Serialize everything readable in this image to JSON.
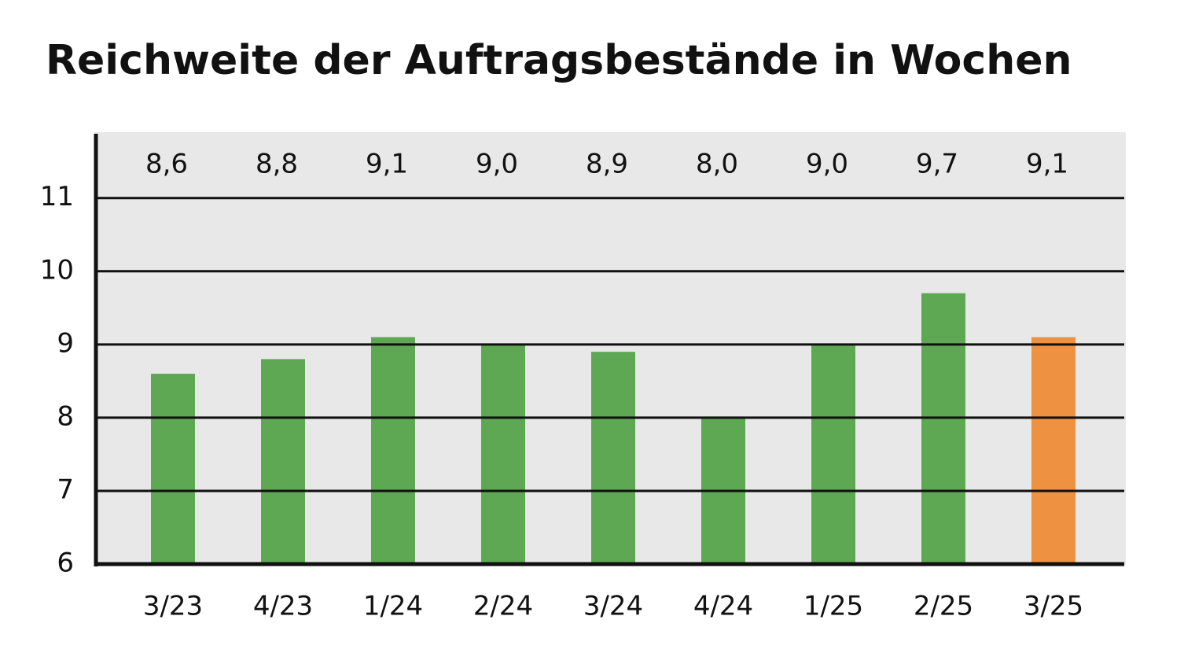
{
  "chart_data": {
    "type": "bar",
    "title": "Reichweite der Auftragsbestände in Wochen",
    "categories": [
      "3/23",
      "4/23",
      "1/24",
      "2/24",
      "3/24",
      "4/24",
      "1/25",
      "2/25",
      "3/25"
    ],
    "values": [
      8.6,
      8.8,
      9.1,
      9.0,
      8.9,
      8.0,
      9.0,
      9.7,
      9.1
    ],
    "value_labels": [
      "8,6",
      "8,8",
      "9,1",
      "9,0",
      "8,9",
      "8,0",
      "9,0",
      "9,7",
      "9,1"
    ],
    "colors": [
      "#5ea854",
      "#5ea854",
      "#5ea854",
      "#5ea854",
      "#5ea854",
      "#5ea854",
      "#5ea854",
      "#5ea854",
      "#ee9140"
    ],
    "ylim": [
      6,
      11.9
    ],
    "yticks": [
      6,
      7,
      8,
      9,
      10,
      11
    ],
    "grid": true
  }
}
